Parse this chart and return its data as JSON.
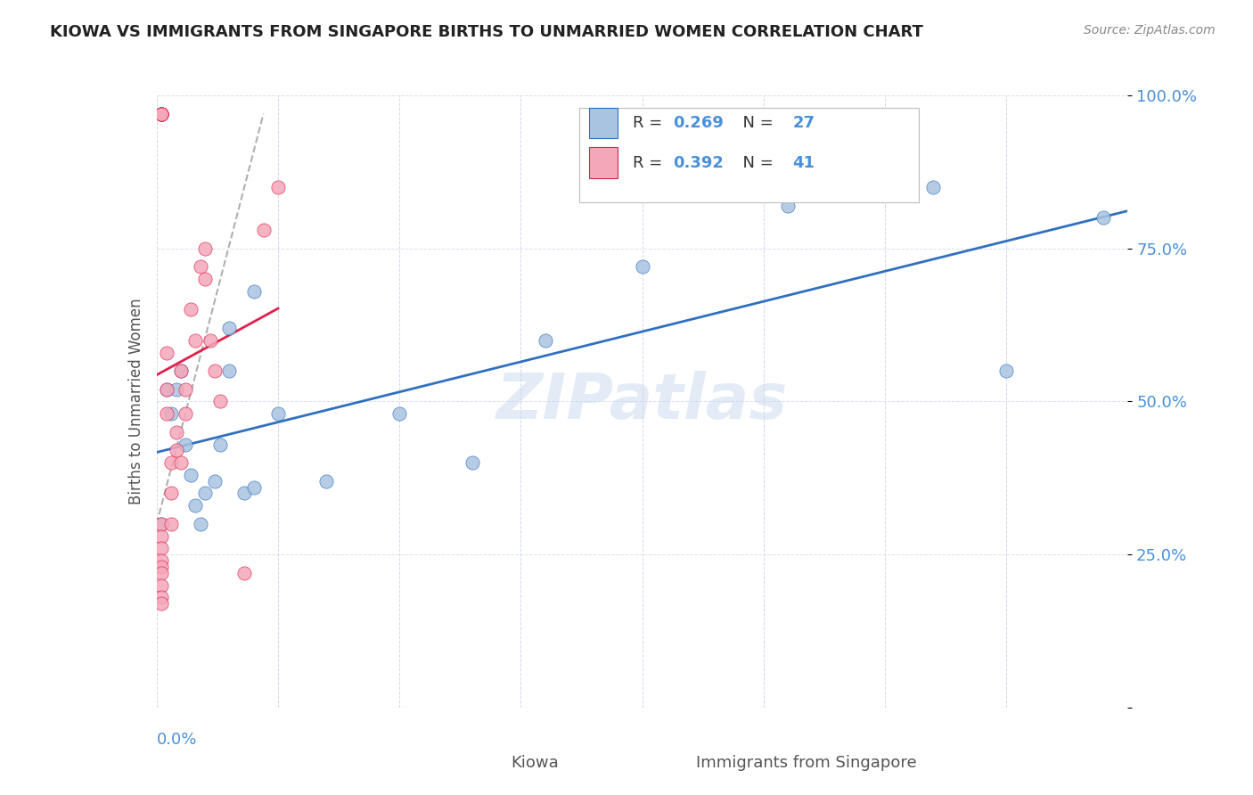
{
  "title": "KIOWA VS IMMIGRANTS FROM SINGAPORE BIRTHS TO UNMARRIED WOMEN CORRELATION CHART",
  "source": "Source: ZipAtlas.com",
  "ylabel": "Births to Unmarried Women",
  "legend_label1": "Kiowa",
  "legend_label2": "Immigrants from Singapore",
  "R1": 0.269,
  "N1": 27,
  "R2": 0.392,
  "N2": 41,
  "color_blue": "#a8c4e0",
  "color_pink": "#f4a7b9",
  "color_blue_text": "#4a90d9",
  "color_trend_blue": "#3070c0",
  "color_trend_pink": "#e0204a",
  "watermark": "ZIPatlas",
  "kiowa_x": [
    0.001,
    0.002,
    0.004,
    0.003,
    0.005,
    0.006,
    0.007,
    0.008,
    0.009,
    0.01,
    0.012,
    0.013,
    0.015,
    0.015,
    0.018,
    0.02,
    0.02,
    0.025,
    0.035,
    0.05,
    0.065,
    0.08,
    0.1,
    0.13,
    0.16,
    0.175,
    0.195
  ],
  "kiowa_y": [
    0.3,
    0.52,
    0.52,
    0.48,
    0.55,
    0.43,
    0.38,
    0.33,
    0.3,
    0.35,
    0.37,
    0.43,
    0.55,
    0.62,
    0.35,
    0.36,
    0.68,
    0.48,
    0.37,
    0.48,
    0.4,
    0.6,
    0.72,
    0.82,
    0.85,
    0.55,
    0.8
  ],
  "singapore_x": [
    0.001,
    0.001,
    0.001,
    0.001,
    0.001,
    0.001,
    0.001,
    0.001,
    0.001,
    0.001,
    0.001,
    0.001,
    0.001,
    0.001,
    0.001,
    0.001,
    0.001,
    0.001,
    0.002,
    0.002,
    0.002,
    0.003,
    0.003,
    0.003,
    0.004,
    0.004,
    0.005,
    0.005,
    0.006,
    0.006,
    0.007,
    0.008,
    0.009,
    0.01,
    0.01,
    0.011,
    0.012,
    0.013,
    0.018,
    0.022,
    0.025
  ],
  "singapore_y": [
    0.97,
    0.97,
    0.97,
    0.97,
    0.97,
    0.97,
    0.97,
    0.97,
    0.97,
    0.3,
    0.28,
    0.26,
    0.24,
    0.23,
    0.22,
    0.2,
    0.18,
    0.17,
    0.52,
    0.48,
    0.58,
    0.4,
    0.35,
    0.3,
    0.45,
    0.42,
    0.55,
    0.4,
    0.52,
    0.48,
    0.65,
    0.6,
    0.72,
    0.7,
    0.75,
    0.6,
    0.55,
    0.5,
    0.22,
    0.78,
    0.85
  ],
  "xmin": 0.0,
  "xmax": 0.2,
  "ymin": 0.0,
  "ymax": 1.0
}
